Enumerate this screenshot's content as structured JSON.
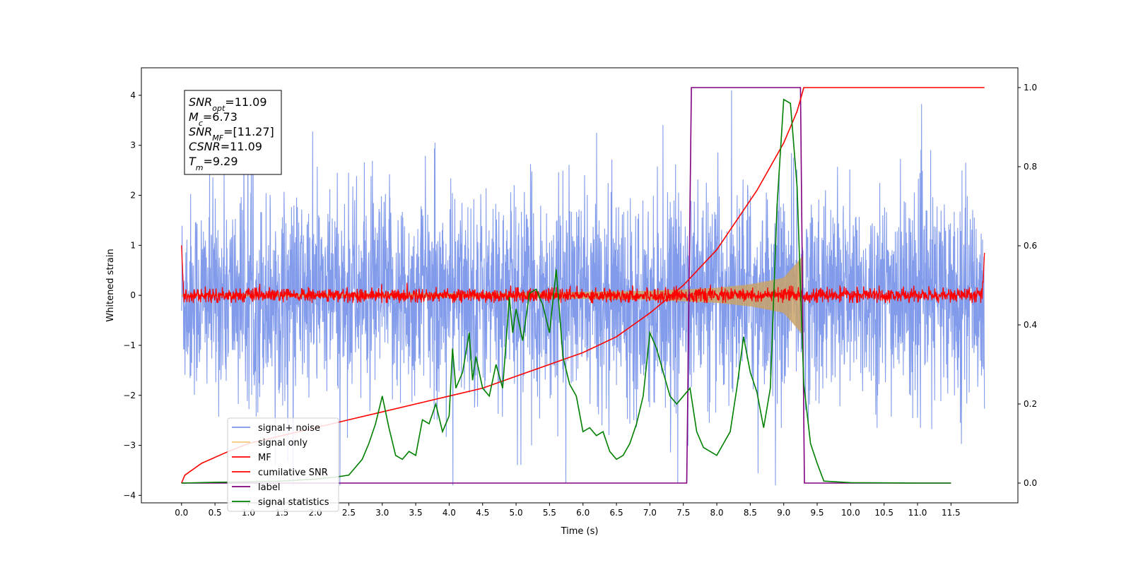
{
  "chart_data": {
    "type": "line",
    "xlabel": "Time (s)",
    "ylabel_left": "Whitened strain",
    "ylabel_right": "",
    "xlim": [
      -0.6,
      12.5
    ],
    "ylim_left": [
      -4.15,
      4.55
    ],
    "ylim_right": [
      -0.05,
      1.05
    ],
    "x_ticks": [
      "0.0",
      "0.5",
      "1.0",
      "1.5",
      "2.0",
      "2.5",
      "3.0",
      "3.5",
      "4.0",
      "4.5",
      "5.0",
      "5.5",
      "6.0",
      "6.5",
      "7.0",
      "7.5",
      "8.0",
      "8.5",
      "9.0",
      "9.5",
      "10.0",
      "10.5",
      "11.0",
      "11.5"
    ],
    "y_ticks_left": [
      "−4",
      "−3",
      "−2",
      "−1",
      "0",
      "1",
      "2",
      "3",
      "4"
    ],
    "y_ticks_right": [
      "0.0",
      "0.2",
      "0.4",
      "0.6",
      "0.8",
      "1.0"
    ],
    "grid": false,
    "legend_position": "lower-left",
    "legend": [
      {
        "label": "signal+ noise",
        "color": "#7b96e9"
      },
      {
        "label": "signal only",
        "color": "#f5c878"
      },
      {
        "label": "MF",
        "color": "#ff0000"
      },
      {
        "label": "cumilative SNR",
        "color": "#ff0000"
      },
      {
        "label": "label",
        "color": "#800080"
      },
      {
        "label": "signal statistics",
        "color": "#008000"
      }
    ],
    "annotation": [
      {
        "sym": "SNR",
        "sub": "opt",
        "value": "=11.09"
      },
      {
        "sym": "M",
        "sub": "c",
        "value": "=6.73"
      },
      {
        "sym": "SNR",
        "sub": "MF",
        "value": "=[11.27]"
      },
      {
        "sym": "CSNR",
        "sub": "",
        "value": "=11.09"
      },
      {
        "sym": "T",
        "sub": "m",
        "value": "=9.29"
      }
    ],
    "series": [
      {
        "name": "signal+ noise",
        "axis": "left",
        "description_range": [
          -3.8,
          4.1
        ],
        "x_start": 0.0,
        "x_end": 12.0,
        "sample_rate": 4000
      },
      {
        "name": "signal only",
        "axis": "left",
        "chirp_merger_time": 9.29,
        "envelope": [
          [
            0.0,
            0.02
          ],
          [
            5.0,
            0.05
          ],
          [
            7.0,
            0.09
          ],
          [
            8.0,
            0.15
          ],
          [
            8.5,
            0.22
          ],
          [
            9.0,
            0.35
          ],
          [
            9.29,
            0.8
          ]
        ]
      },
      {
        "name": "MF",
        "axis": "left",
        "x_start": 0.0,
        "x_end": 12.0,
        "edge_values": {
          "start": 1.0,
          "end": 0.85
        },
        "noise_band": [
          -0.15,
          0.25
        ]
      },
      {
        "name": "cumilative SNR",
        "axis": "right",
        "x": [
          0.0,
          0.05,
          0.3,
          0.7,
          1.0,
          1.5,
          2.0,
          2.5,
          3.0,
          3.5,
          4.0,
          4.5,
          5.0,
          5.5,
          6.0,
          6.5,
          7.0,
          7.5,
          8.0,
          8.2,
          8.4,
          8.6,
          8.8,
          9.0,
          9.1,
          9.2,
          9.25,
          9.3,
          10.0,
          11.0,
          12.0
        ],
        "y": [
          0.0,
          0.02,
          0.05,
          0.08,
          0.1,
          0.12,
          0.14,
          0.16,
          0.18,
          0.2,
          0.22,
          0.24,
          0.27,
          0.3,
          0.33,
          0.37,
          0.43,
          0.5,
          0.59,
          0.64,
          0.69,
          0.74,
          0.8,
          0.86,
          0.9,
          0.94,
          0.97,
          1.0,
          1.0,
          1.0,
          1.0
        ]
      },
      {
        "name": "label",
        "axis": "right",
        "x": [
          0.0,
          7.55,
          7.62,
          9.25,
          9.31,
          11.5
        ],
        "y": [
          0.0,
          0.0,
          1.0,
          1.0,
          0.0,
          0.0
        ]
      },
      {
        "name": "signal statistics",
        "axis": "right",
        "x": [
          0.0,
          0.5,
          1.0,
          1.5,
          2.0,
          2.3,
          2.5,
          2.6,
          2.7,
          2.8,
          2.9,
          3.0,
          3.1,
          3.2,
          3.3,
          3.4,
          3.5,
          3.6,
          3.7,
          3.8,
          3.9,
          4.0,
          4.05,
          4.1,
          4.2,
          4.3,
          4.35,
          4.4,
          4.5,
          4.6,
          4.7,
          4.8,
          4.9,
          4.95,
          5.0,
          5.1,
          5.2,
          5.3,
          5.4,
          5.5,
          5.6,
          5.7,
          5.8,
          5.9,
          6.0,
          6.1,
          6.2,
          6.3,
          6.4,
          6.5,
          6.6,
          6.7,
          6.8,
          6.9,
          7.0,
          7.1,
          7.2,
          7.3,
          7.4,
          7.5,
          7.6,
          7.7,
          7.8,
          7.9,
          8.0,
          8.1,
          8.2,
          8.3,
          8.4,
          8.5,
          8.6,
          8.7,
          8.8,
          8.9,
          9.0,
          9.1,
          9.2,
          9.3,
          9.4,
          9.5,
          9.6,
          10.0,
          11.0,
          11.5
        ],
        "y": [
          0.0,
          0.002,
          0.003,
          0.005,
          0.01,
          0.015,
          0.02,
          0.04,
          0.06,
          0.1,
          0.15,
          0.22,
          0.14,
          0.07,
          0.06,
          0.08,
          0.07,
          0.16,
          0.15,
          0.2,
          0.13,
          0.17,
          0.34,
          0.24,
          0.28,
          0.38,
          0.26,
          0.32,
          0.24,
          0.22,
          0.3,
          0.24,
          0.47,
          0.38,
          0.44,
          0.36,
          0.48,
          0.49,
          0.45,
          0.38,
          0.54,
          0.32,
          0.25,
          0.22,
          0.13,
          0.14,
          0.12,
          0.13,
          0.08,
          0.06,
          0.07,
          0.1,
          0.15,
          0.22,
          0.38,
          0.34,
          0.28,
          0.22,
          0.2,
          0.22,
          0.24,
          0.13,
          0.09,
          0.08,
          0.07,
          0.1,
          0.13,
          0.24,
          0.37,
          0.28,
          0.23,
          0.14,
          0.24,
          0.7,
          0.97,
          0.96,
          0.75,
          0.25,
          0.1,
          0.05,
          0.005,
          0.001,
          0.0,
          0.0
        ]
      }
    ]
  }
}
